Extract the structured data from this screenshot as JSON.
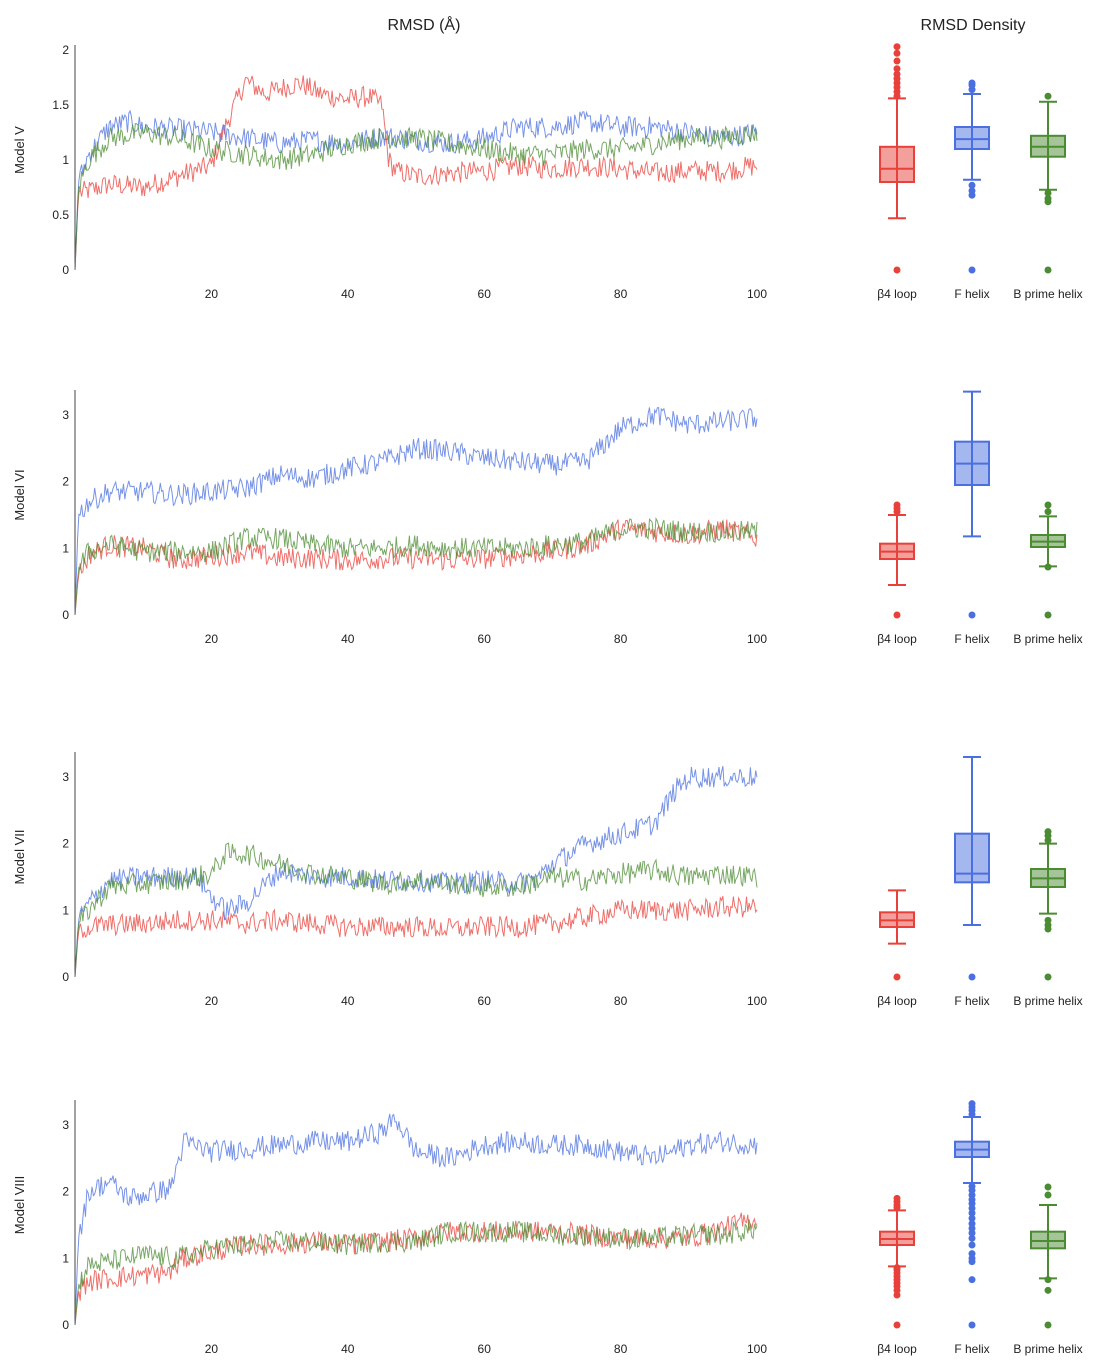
{
  "titles": {
    "rmsd": "RMSD (Å)",
    "density": "RMSD Density"
  },
  "chart_data": [
    {
      "type": "line",
      "ylabel": "Model V",
      "xlim": [
        0,
        100
      ],
      "ylim": [
        0,
        2
      ],
      "xticks": [
        "20",
        "40",
        "60",
        "80",
        "100"
      ],
      "yticks": [
        "0",
        "0.5",
        "1",
        "1.5",
        "2"
      ],
      "series": [
        {
          "name": "β4 loop",
          "color": "#e8403a",
          "x": [
            0,
            0.5,
            2,
            5,
            10,
            15,
            20,
            22,
            25,
            28,
            30,
            33,
            36,
            40,
            43,
            45,
            46,
            47,
            50,
            55,
            60,
            65,
            70,
            75,
            80,
            85,
            90,
            95,
            100
          ],
          "y": [
            0,
            0.7,
            0.72,
            0.78,
            0.75,
            0.85,
            0.95,
            1.3,
            1.72,
            1.6,
            1.65,
            1.7,
            1.6,
            1.55,
            1.58,
            1.5,
            1.0,
            0.9,
            0.85,
            0.88,
            0.9,
            0.95,
            0.92,
            0.95,
            0.92,
            0.88,
            0.9,
            0.9,
            0.95
          ]
        },
        {
          "name": "F helix",
          "color": "#4a6fe0",
          "x": [
            0,
            0.5,
            2,
            5,
            8,
            10,
            15,
            20,
            25,
            30,
            35,
            40,
            45,
            50,
            55,
            60,
            65,
            70,
            75,
            80,
            85,
            90,
            95,
            100
          ],
          "y": [
            0,
            0.8,
            1.05,
            1.3,
            1.35,
            1.3,
            1.28,
            1.25,
            1.2,
            1.15,
            1.18,
            1.15,
            1.22,
            1.18,
            1.15,
            1.2,
            1.3,
            1.3,
            1.35,
            1.3,
            1.3,
            1.25,
            1.2,
            1.25
          ]
        },
        {
          "name": "B prime helix",
          "color": "#4b8b32",
          "x": [
            0,
            0.5,
            2,
            5,
            10,
            15,
            20,
            25,
            30,
            35,
            40,
            45,
            50,
            55,
            60,
            65,
            70,
            75,
            80,
            85,
            90,
            95,
            100
          ],
          "y": [
            0,
            0.75,
            1.0,
            1.2,
            1.25,
            1.2,
            1.1,
            1.05,
            1.0,
            1.05,
            1.15,
            1.2,
            1.2,
            1.15,
            1.1,
            1.05,
            1.05,
            1.1,
            1.1,
            1.15,
            1.2,
            1.2,
            1.25
          ]
        }
      ],
      "boxplot": {
        "categories": [
          "β4 loop",
          "F helix",
          "B prime helix"
        ],
        "colors": [
          "#e8403a",
          "#4a6fe0",
          "#4b8b32"
        ],
        "boxes": [
          {
            "whislo": 0.47,
            "q1": 0.8,
            "med": 0.92,
            "q3": 1.12,
            "whishi": 1.56,
            "fliers": [
              0,
              1.58,
              1.62,
              1.66,
              1.7,
              1.74,
              1.78,
              1.83,
              1.9,
              1.97,
              2.03
            ]
          },
          {
            "whislo": 0.82,
            "q1": 1.1,
            "med": 1.19,
            "q3": 1.3,
            "whishi": 1.6,
            "fliers": [
              0,
              0.68,
              0.72,
              0.77,
              1.64,
              1.68,
              1.7
            ]
          },
          {
            "whislo": 0.73,
            "q1": 1.03,
            "med": 1.12,
            "q3": 1.22,
            "whishi": 1.53,
            "fliers": [
              0,
              0.62,
              0.65,
              0.7,
              1.58
            ]
          }
        ]
      }
    },
    {
      "type": "line",
      "ylabel": "Model VI",
      "xlim": [
        0,
        100
      ],
      "ylim": [
        0,
        3.3
      ],
      "xticks": [
        "20",
        "40",
        "60",
        "80",
        "100"
      ],
      "yticks": [
        "0",
        "1",
        "2",
        "3"
      ],
      "series": [
        {
          "name": "β4 loop",
          "color": "#e8403a",
          "x": [
            0,
            0.5,
            2,
            5,
            10,
            15,
            20,
            25,
            30,
            35,
            40,
            45,
            50,
            55,
            60,
            65,
            70,
            75,
            80,
            85,
            90,
            95,
            100
          ],
          "y": [
            0,
            0.6,
            0.9,
            1.05,
            1.0,
            0.82,
            0.88,
            0.95,
            0.85,
            0.85,
            0.82,
            0.85,
            0.85,
            0.82,
            0.85,
            0.9,
            0.95,
            1.05,
            1.3,
            1.25,
            1.2,
            1.3,
            1.15
          ]
        },
        {
          "name": "F helix",
          "color": "#4a6fe0",
          "x": [
            0,
            0.5,
            2,
            5,
            10,
            15,
            20,
            25,
            30,
            35,
            40,
            45,
            50,
            55,
            60,
            65,
            70,
            75,
            80,
            85,
            90,
            95,
            100
          ],
          "y": [
            0,
            1.5,
            1.7,
            1.85,
            1.85,
            1.8,
            1.85,
            1.9,
            2.1,
            2.05,
            2.2,
            2.3,
            2.5,
            2.45,
            2.35,
            2.3,
            2.25,
            2.3,
            2.8,
            3.0,
            2.85,
            2.9,
            2.95
          ]
        },
        {
          "name": "B prime helix",
          "color": "#4b8b32",
          "x": [
            0,
            0.5,
            2,
            5,
            10,
            15,
            20,
            25,
            30,
            35,
            40,
            45,
            50,
            55,
            60,
            65,
            70,
            75,
            80,
            85,
            90,
            95,
            100
          ],
          "y": [
            0,
            0.7,
            0.95,
            1.05,
            0.95,
            0.95,
            0.95,
            1.15,
            1.15,
            1.05,
            1.0,
            1.0,
            1.05,
            1.0,
            1.0,
            1.0,
            1.05,
            1.1,
            1.3,
            1.3,
            1.25,
            1.25,
            1.25
          ]
        }
      ],
      "boxplot": {
        "categories": [
          "β4 loop",
          "F helix",
          "B prime helix"
        ],
        "colors": [
          "#e8403a",
          "#4a6fe0",
          "#4b8b32"
        ],
        "boxes": [
          {
            "whislo": 0.45,
            "q1": 0.84,
            "med": 0.95,
            "q3": 1.07,
            "whishi": 1.5,
            "fliers": [
              0,
              1.55,
              1.6,
              1.65
            ]
          },
          {
            "whislo": 1.18,
            "q1": 1.95,
            "med": 2.27,
            "q3": 2.6,
            "whishi": 3.35,
            "fliers": [
              0
            ]
          },
          {
            "whislo": 0.73,
            "q1": 1.02,
            "med": 1.1,
            "q3": 1.2,
            "whishi": 1.48,
            "fliers": [
              0,
              0.72,
              1.55,
              1.65
            ]
          }
        ]
      }
    },
    {
      "type": "line",
      "ylabel": "Model VII",
      "xlim": [
        0,
        100
      ],
      "ylim": [
        0,
        3.3
      ],
      "xticks": [
        "20",
        "40",
        "60",
        "80",
        "100"
      ],
      "yticks": [
        "0",
        "1",
        "2",
        "3"
      ],
      "series": [
        {
          "name": "β4 loop",
          "color": "#e8403a",
          "x": [
            0,
            0.5,
            2,
            5,
            10,
            15,
            20,
            25,
            30,
            35,
            40,
            45,
            50,
            55,
            60,
            65,
            70,
            75,
            80,
            85,
            90,
            95,
            100
          ],
          "y": [
            0,
            0.7,
            0.75,
            0.78,
            0.8,
            0.85,
            0.85,
            0.8,
            0.85,
            0.8,
            0.75,
            0.75,
            0.75,
            0.72,
            0.75,
            0.75,
            0.8,
            0.9,
            1.0,
            1.0,
            1.0,
            1.05,
            1.05
          ]
        },
        {
          "name": "F helix",
          "color": "#4a6fe0",
          "x": [
            0,
            0.5,
            2,
            5,
            10,
            15,
            18,
            20,
            22,
            25,
            30,
            35,
            40,
            45,
            50,
            55,
            60,
            65,
            68,
            70,
            75,
            80,
            85,
            88,
            90,
            95,
            100
          ],
          "y": [
            0,
            0.85,
            1.1,
            1.45,
            1.5,
            1.5,
            1.5,
            1.2,
            1.0,
            1.1,
            1.6,
            1.5,
            1.5,
            1.45,
            1.45,
            1.4,
            1.45,
            1.4,
            1.5,
            1.7,
            2.0,
            2.15,
            2.3,
            2.8,
            3.0,
            3.0,
            3.0
          ]
        },
        {
          "name": "B prime helix",
          "color": "#4b8b32",
          "x": [
            0,
            0.5,
            2,
            5,
            10,
            15,
            20,
            22,
            25,
            30,
            35,
            40,
            45,
            50,
            55,
            60,
            65,
            70,
            75,
            80,
            85,
            90,
            95,
            100
          ],
          "y": [
            0,
            0.8,
            1.0,
            1.35,
            1.4,
            1.45,
            1.55,
            1.85,
            1.85,
            1.7,
            1.55,
            1.5,
            1.4,
            1.45,
            1.4,
            1.35,
            1.35,
            1.5,
            1.45,
            1.55,
            1.6,
            1.5,
            1.55,
            1.5
          ]
        }
      ],
      "boxplot": {
        "categories": [
          "β4 loop",
          "F helix",
          "B prime helix"
        ],
        "colors": [
          "#e8403a",
          "#4a6fe0",
          "#4b8b32"
        ],
        "boxes": [
          {
            "whislo": 0.5,
            "q1": 0.75,
            "med": 0.85,
            "q3": 0.97,
            "whishi": 1.3,
            "fliers": [
              0
            ]
          },
          {
            "whislo": 0.78,
            "q1": 1.42,
            "med": 1.55,
            "q3": 2.15,
            "whishi": 3.3,
            "fliers": [
              0
            ]
          },
          {
            "whislo": 0.95,
            "q1": 1.35,
            "med": 1.48,
            "q3": 1.62,
            "whishi": 2.0,
            "fliers": [
              0,
              0.72,
              0.78,
              0.85,
              2.05,
              2.12,
              2.18
            ]
          }
        ]
      }
    },
    {
      "type": "line",
      "ylabel": "Model VIII",
      "xlim": [
        0,
        100
      ],
      "ylim": [
        0,
        3.3
      ],
      "xticks": [
        "20",
        "40",
        "60",
        "80",
        "100"
      ],
      "yticks": [
        "0",
        "1",
        "2",
        "3"
      ],
      "series": [
        {
          "name": "β4 loop",
          "color": "#e8403a",
          "x": [
            0,
            0.5,
            2,
            5,
            10,
            14,
            16,
            20,
            25,
            30,
            35,
            40,
            45,
            50,
            55,
            60,
            65,
            70,
            75,
            80,
            85,
            90,
            95,
            100
          ],
          "y": [
            0,
            0.5,
            0.65,
            0.7,
            0.75,
            0.8,
            1.0,
            1.1,
            1.2,
            1.2,
            1.25,
            1.2,
            1.25,
            1.3,
            1.4,
            1.4,
            1.4,
            1.4,
            1.35,
            1.3,
            1.3,
            1.3,
            1.45,
            1.6
          ]
        },
        {
          "name": "F helix",
          "color": "#4a6fe0",
          "x": [
            0,
            0.5,
            2,
            5,
            8,
            10,
            14,
            16,
            20,
            25,
            30,
            35,
            40,
            45,
            47,
            50,
            55,
            60,
            65,
            70,
            75,
            80,
            85,
            90,
            95,
            100
          ],
          "y": [
            0,
            1.3,
            2.0,
            2.15,
            1.9,
            1.95,
            2.05,
            2.75,
            2.6,
            2.65,
            2.7,
            2.75,
            2.75,
            2.9,
            3.1,
            2.6,
            2.5,
            2.7,
            2.75,
            2.7,
            2.7,
            2.6,
            2.5,
            2.7,
            2.75,
            2.7
          ]
        },
        {
          "name": "B prime helix",
          "color": "#4b8b32",
          "x": [
            0,
            0.5,
            2,
            5,
            10,
            15,
            20,
            25,
            30,
            35,
            40,
            45,
            50,
            55,
            60,
            65,
            70,
            75,
            80,
            85,
            90,
            95,
            100
          ],
          "y": [
            0,
            0.6,
            0.9,
            0.95,
            1.05,
            1.0,
            1.15,
            1.2,
            1.25,
            1.25,
            1.2,
            1.25,
            1.25,
            1.4,
            1.4,
            1.4,
            1.35,
            1.35,
            1.3,
            1.3,
            1.35,
            1.35,
            1.45
          ]
        }
      ],
      "boxplot": {
        "categories": [
          "β4 loop",
          "F helix",
          "B prime helix"
        ],
        "colors": [
          "#e8403a",
          "#4a6fe0",
          "#4b8b32"
        ],
        "boxes": [
          {
            "whislo": 0.88,
            "q1": 1.2,
            "med": 1.29,
            "q3": 1.4,
            "whishi": 1.72,
            "fliers": [
              0,
              0.45,
              0.52,
              0.58,
              0.63,
              0.68,
              0.73,
              0.78,
              0.83,
              0.86,
              1.76,
              1.8,
              1.85,
              1.9
            ]
          },
          {
            "whislo": 2.13,
            "q1": 2.52,
            "med": 2.63,
            "q3": 2.75,
            "whishi": 3.12,
            "fliers": [
              0,
              0.68,
              0.95,
              1.0,
              1.07,
              1.2,
              1.3,
              1.38,
              1.45,
              1.52,
              1.6,
              1.68,
              1.75,
              1.82,
              1.88,
              1.95,
              2.02,
              2.08,
              3.16,
              3.22,
              3.27,
              3.32
            ]
          },
          {
            "whislo": 0.7,
            "q1": 1.15,
            "med": 1.26,
            "q3": 1.4,
            "whishi": 1.8,
            "fliers": [
              0,
              0.52,
              0.68,
              1.95,
              2.07
            ]
          }
        ]
      }
    }
  ]
}
